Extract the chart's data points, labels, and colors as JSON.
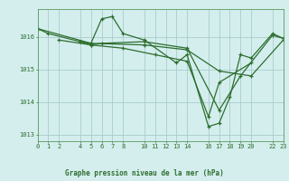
{
  "background_color": "#d4eeee",
  "grid_color": "#aacccc",
  "line_color": "#2d6e2d",
  "title": "Graphe pression niveau de la mer (hPa)",
  "xlim": [
    0,
    23
  ],
  "ylim": [
    1012.8,
    1016.85
  ],
  "yticks": [
    1013,
    1014,
    1015,
    1016
  ],
  "xtick_positions": [
    0,
    1,
    2,
    4,
    5,
    6,
    7,
    8,
    10,
    11,
    12,
    13,
    14,
    16,
    17,
    18,
    19,
    20,
    22,
    23
  ],
  "xtick_labels": [
    "0",
    "1",
    "2",
    "4",
    "5",
    "6",
    "7",
    "8",
    "10",
    "11",
    "12",
    "13",
    "14",
    "16",
    "17",
    "18",
    "19",
    "20",
    "22",
    "23"
  ],
  "series": [
    {
      "x": [
        0,
        1,
        4,
        5,
        6,
        7,
        8,
        10,
        13,
        14,
        16,
        17,
        18,
        19,
        20,
        22,
        23
      ],
      "y": [
        1016.25,
        1016.1,
        1015.85,
        1015.8,
        1016.55,
        1016.62,
        1016.1,
        1015.9,
        1015.2,
        1015.45,
        1013.25,
        1013.35,
        1014.15,
        1015.45,
        1015.35,
        1016.1,
        1015.95
      ]
    },
    {
      "x": [
        4,
        5,
        6,
        10,
        14,
        17,
        19,
        22,
        23
      ],
      "y": [
        1015.85,
        1015.75,
        1015.8,
        1015.85,
        1015.65,
        1013.75,
        1014.8,
        1016.05,
        1015.95
      ]
    },
    {
      "x": [
        0,
        5,
        10,
        14,
        17,
        20,
        23
      ],
      "y": [
        1016.25,
        1015.8,
        1015.75,
        1015.6,
        1014.95,
        1014.8,
        1015.9
      ]
    },
    {
      "x": [
        2,
        5,
        8,
        11,
        14,
        16,
        17,
        20
      ],
      "y": [
        1015.9,
        1015.75,
        1015.65,
        1015.45,
        1015.25,
        1013.55,
        1014.6,
        1015.2
      ]
    }
  ]
}
